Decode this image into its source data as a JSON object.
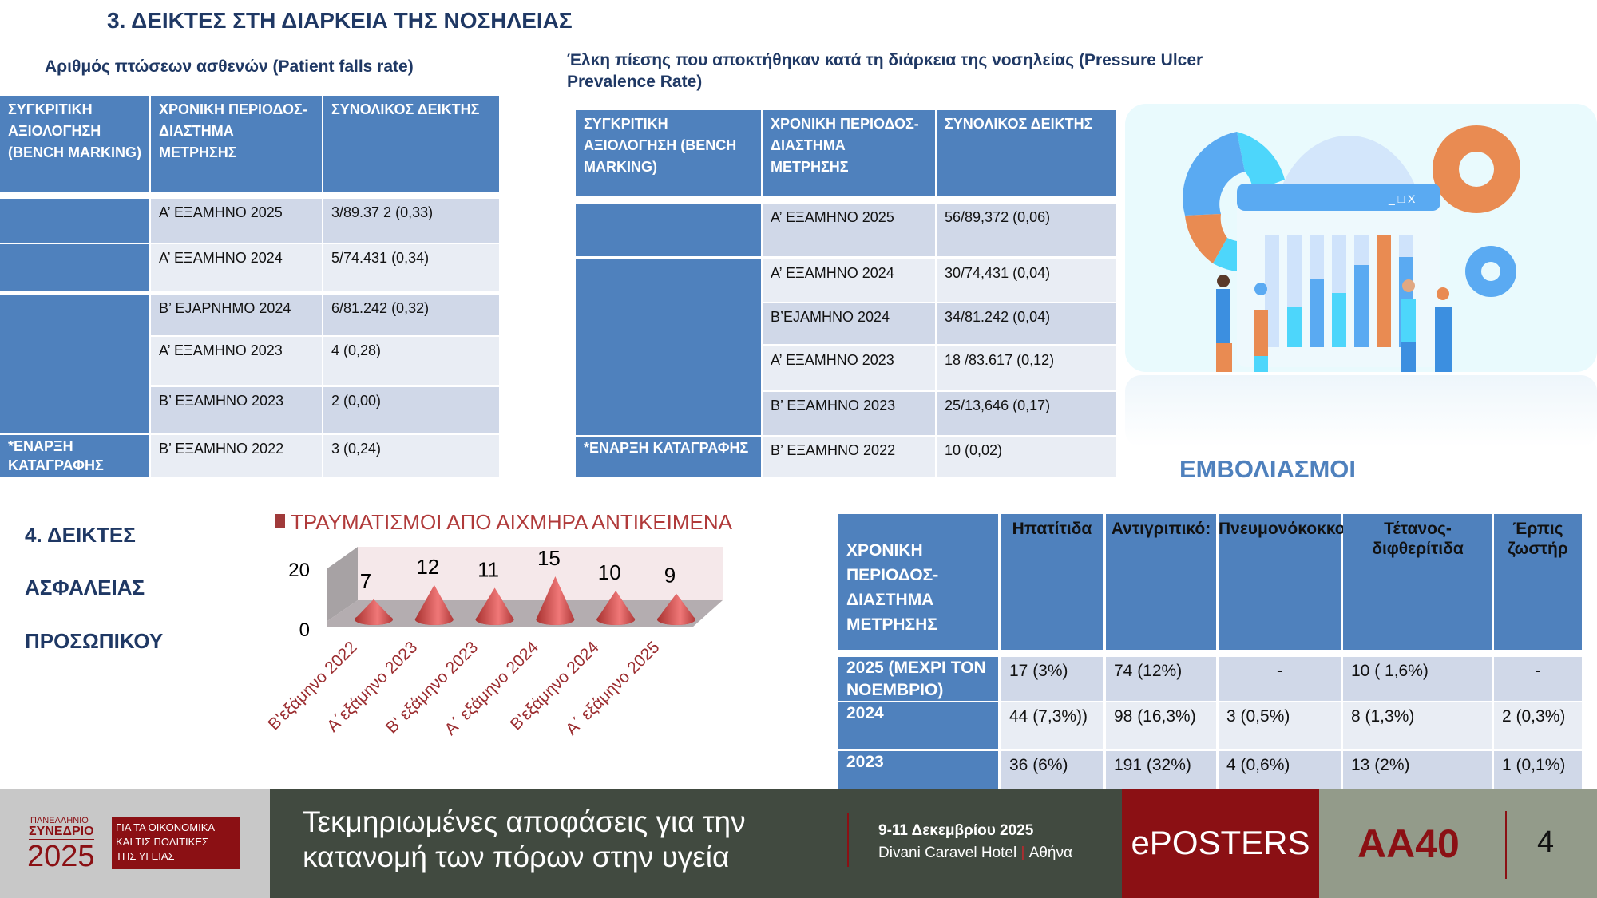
{
  "title": "3. ΔΕΙΚΤΕΣ ΣΤΗ ΔΙΑΡΚΕΙΑ ΤΗΣ ΝΟΣΗΛΕΙΑΣ",
  "falls": {
    "subtitle": "Αριθμός πτώσεων ασθενών (Patient falls rate)",
    "headers": [
      "ΣΥΓΚΡΙΤΙΚΗ ΑΞΙΟΛΟΓΗΣΗ (BENCH MARKING)",
      "ΧΡΟΝΙΚΗ ΠΕΡΙΟΔΟΣ-ΔΙΑΣΤΗΜΑ ΜΕΤΡΗΣΗΣ",
      "ΣΥΝΟΛΙΚΟΣ ΔΕΙΚΤΗΣ"
    ],
    "start_label": "*ΕΝΑΡΞΗ ΚΑΤΑΓΡΑΦΗΣ",
    "rows": [
      {
        "period": "Α’ ΕΞΑΜΗΝΟ 2025",
        "value": "3/89.37 2  (0,33)"
      },
      {
        "period": "Α’ ΕΞΑΜΗΝΟ 2024",
        "value": "5/74.431 (0,34)"
      },
      {
        "period": "Β’ ΕJΑΡΝΗΜΟ 2024",
        "value": "6/81.242 (0,32)"
      },
      {
        "period": "Α’ ΕΞΑΜΗΝΟ 2023",
        "value": "4 (0,28)"
      },
      {
        "period": "Β’ ΕΞΑΜΗΝΟ 2023",
        "value": "2 (0,00)"
      },
      {
        "period": "Β’ ΕΞΑΜΗΝΟ 2022",
        "value": "3 (0,24)"
      }
    ]
  },
  "ulcers": {
    "subtitle": "Έλκη πίεσης που αποκτήθηκαν κατά τη διάρκεια της νοσηλείας (Pressure Ulcer Prevalence Rate)",
    "headers": [
      "ΣΥΓΚΡΙΤΙΚΗ ΑΞΙΟΛΟΓΗΣΗ (BENCH MARKING)",
      "ΧΡΟΝΙΚΗ ΠΕΡΙΟΔΟΣ-ΔΙΑΣΤΗΜΑ ΜΕΤΡΗΣΗΣ",
      "ΣΥΝΟΛΙΚΟΣ ΔΕΙΚΤΗΣ"
    ],
    "start_label": "*ΕΝΑΡΞΗ ΚΑΤΑΓΡΑΦΗΣ",
    "rows": [
      {
        "period": "Α’ ΕΞΑΜΗΝΟ 2025",
        "value": "56/89,372 (0,06)"
      },
      {
        "period": "Α’ ΕΞΑΜΗΝΟ 2024",
        "value": "30/74,431 (0,04)"
      },
      {
        "period": "Β’ΕJΑΜΗΝΟ 2024",
        "value": "34/81.242 (0,04)"
      },
      {
        "period": "Α’ ΕΞΑΜΗΝΟ 2023",
        "value": "18 /83.617 (0,12)"
      },
      {
        "period": "Β’ ΕΞΑΜΗΝΟ 2023",
        "value": "25/13,646 (0,17)"
      },
      {
        "period": "Β’ ΕΞΑΜΗΝΟ 2022",
        "value": "10 (0,02)"
      }
    ]
  },
  "vacc": {
    "title": "ΕΜΒΟΛΙΑΣΜΟΙ",
    "headers": [
      "ΧΡΟΝΙΚΗ ΠΕΡΙΟΔΟΣ-ΔΙΑΣΤΗΜΑ ΜΕΤΡΗΣΗΣ",
      "Ηπατίτιδα",
      "Αντιγριπικό:",
      "Πνευμονόκοκκος",
      "Τέτανος-διφθερίτιδα",
      "Έρπις ζωστήρ"
    ],
    "rows": [
      [
        "2025 (ΜΕΧΡΙ ΤΟΝ ΝΟΕΜΒΡΙΟ)",
        "17 (3%)",
        "74 (12%)",
        "-",
        "10 ( 1,6%)",
        "-"
      ],
      [
        "2024",
        "44 (7,3%))",
        "98 (16,3%)",
        "3 (0,5%)",
        "8 (1,3%)",
        "2 (0,3%)"
      ],
      [
        "2023",
        "36 (6%)",
        "191 (32%)",
        "4 (0,6%)",
        "13 (2%)",
        "1 (0,1%)"
      ]
    ]
  },
  "section4": [
    "4. ΔΕΙΚΤΕΣ",
    "ΑΣΦΑΛΕΙΑΣ",
    "ΠΡΟΣΩΠΙΚΟΥ"
  ],
  "chart_data": {
    "type": "bar",
    "style": "3d-cone",
    "title": "ΤΡΑΥΜΑΤΙΣΜΟΙ ΑΠΟ ΑΙΧΜΗΡΑ ΑΝΤΙΚΕΙΜΕΝΑ",
    "categories": [
      "Β'εξάμηνο 2022",
      "Α΄εξάμηνο 2023",
      "Β' εξάμηνο 2023",
      "Α΄ εξάμηνο 2024",
      "Β'εξάμηνο 2024",
      "Α΄ εξάμηνο 2025"
    ],
    "values": [
      7,
      12,
      11,
      15,
      10,
      9
    ],
    "yticks": [
      "0",
      "20"
    ],
    "ylim": [
      0,
      20
    ],
    "legend": "top",
    "color": "#c0504d"
  },
  "illustration": {
    "window_controls": "_ □ X"
  },
  "footer": {
    "logo_top": "ΠΑΝΕΛΛΗΝΙΟ",
    "logo_mid": "ΣΥΝΕΔΡΙΟ",
    "logo_year": "2025",
    "logo_box": [
      "ΓΙΑ ΤΑ ΟΙΚΟΝΟΜΙΚΑ",
      "ΚΑΙ ΤΙΣ ΠΟΛΙΤΙΚΕΣ",
      "ΤΗΣ ΥΓΕΙΑΣ"
    ],
    "tagline": [
      "Τεκμηριωμένες αποφάσεις για την",
      "κατανομή των πόρων στην υγεία"
    ],
    "dates": "9-11 Δεκεμβρίου 2025",
    "venue": "Divani Caravel Hotel",
    "city": "Αθήνα",
    "eposters": "ePOSTERS",
    "code": "AA40",
    "page": "4"
  }
}
